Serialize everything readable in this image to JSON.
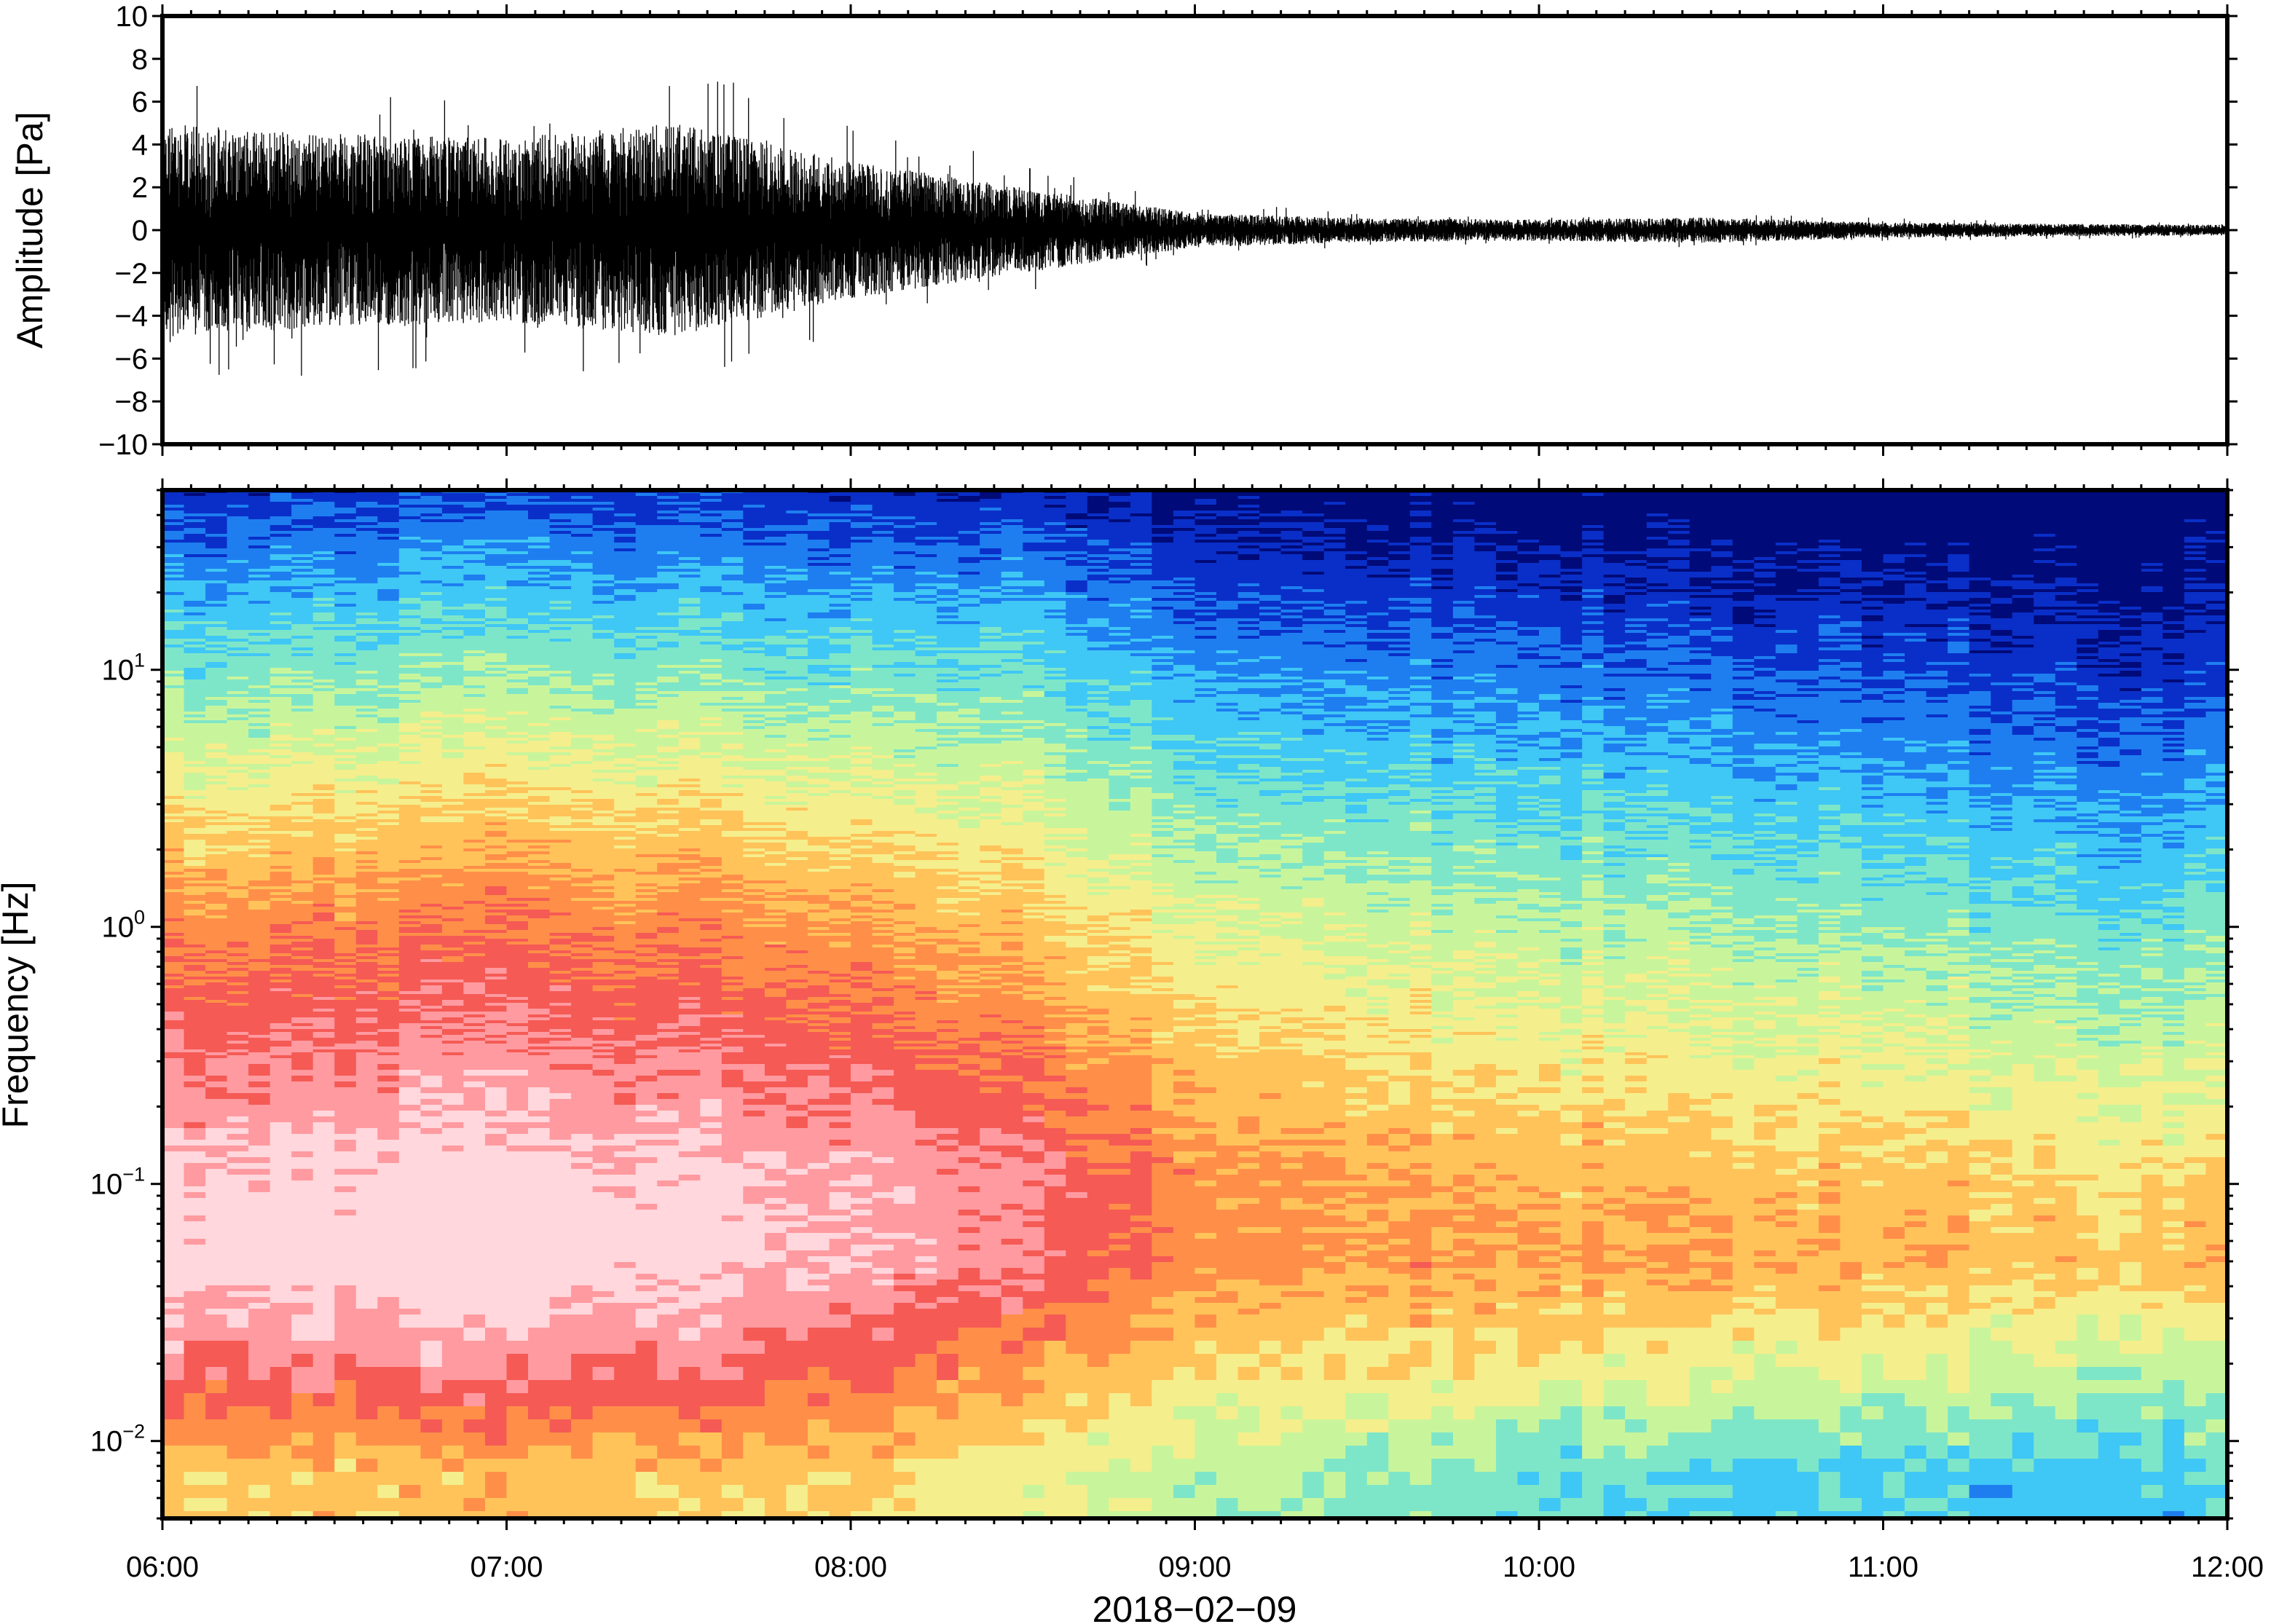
{
  "chart_data": [
    {
      "type": "line",
      "panel": "waveform",
      "ylabel": "Amplitude [Pa]",
      "ylim": [
        -10,
        10
      ],
      "yticks": [
        10,
        8,
        6,
        4,
        2,
        0,
        -2,
        -4,
        -6,
        -8,
        -10
      ],
      "ytick_labels": [
        "10",
        "8",
        "6",
        "4",
        "2",
        "0",
        "−2",
        "−4",
        "−6",
        "−8",
        "−10"
      ],
      "xlim_hours": [
        6,
        12
      ],
      "envelope": {
        "hours": [
          6.0,
          6.5,
          7.0,
          7.5,
          8.0,
          8.5,
          9.0,
          9.5,
          10.0,
          10.5,
          11.0,
          11.5,
          12.0
        ],
        "max_abs_pa": [
          5.0,
          4.5,
          4.3,
          5.0,
          3.2,
          2.0,
          0.8,
          0.55,
          0.5,
          0.6,
          0.35,
          0.3,
          0.25
        ]
      },
      "color": "#000000"
    },
    {
      "type": "heatmap",
      "panel": "spectrogram",
      "ylabel": "Frequency [Hz]",
      "yscale": "log",
      "ylim_hz": [
        0.005,
        50
      ],
      "yticks": [
        {
          "base": "10",
          "exp": "1",
          "value": 10
        },
        {
          "base": "10",
          "exp": "0",
          "value": 1
        },
        {
          "base": "10",
          "exp": "−1",
          "value": 0.1
        },
        {
          "base": "10",
          "exp": "−2",
          "value": 0.01
        }
      ],
      "xlim_hours": [
        6,
        12
      ],
      "colormap": "rainbow (dark blue = low power, pink = high power)",
      "colors": [
        "#000a78",
        "#0a2fc8",
        "#1e7ef0",
        "#3fc7f5",
        "#7ee6c8",
        "#c8f59b",
        "#f5ee8c",
        "#ffc35a",
        "#ff8f48",
        "#f55a55",
        "#ff9aa0",
        "#ffd7dc"
      ],
      "relative_power_anchors": {
        "hours": [
          6,
          7,
          8,
          8.5,
          9,
          10,
          11,
          12
        ],
        "rows": [
          {
            "hz": 50,
            "level": [
              0.12,
              0.14,
              0.12,
              0.1,
              0.05,
              0.02,
              0.0,
              0.0
            ]
          },
          {
            "hz": 10,
            "level": [
              0.38,
              0.4,
              0.38,
              0.35,
              0.25,
              0.2,
              0.15,
              0.12
            ]
          },
          {
            "hz": 1,
            "level": [
              0.72,
              0.75,
              0.7,
              0.62,
              0.52,
              0.45,
              0.4,
              0.35
            ]
          },
          {
            "hz": 0.1,
            "level": [
              0.95,
              0.97,
              0.93,
              0.85,
              0.72,
              0.65,
              0.62,
              0.58
            ]
          },
          {
            "hz": 0.05,
            "level": [
              0.98,
              1.0,
              0.94,
              0.85,
              0.72,
              0.68,
              0.65,
              0.62
            ]
          },
          {
            "hz": 0.02,
            "level": [
              0.85,
              0.86,
              0.8,
              0.7,
              0.6,
              0.55,
              0.5,
              0.45
            ]
          },
          {
            "hz": 0.007,
            "level": [
              0.6,
              0.62,
              0.6,
              0.52,
              0.45,
              0.35,
              0.3,
              0.3
            ]
          }
        ]
      }
    }
  ],
  "xaxis": {
    "tick_labels": [
      "06:00",
      "07:00",
      "08:00",
      "09:00",
      "10:00",
      "11:00",
      "12:00"
    ],
    "date_label": "2018−02−09"
  }
}
